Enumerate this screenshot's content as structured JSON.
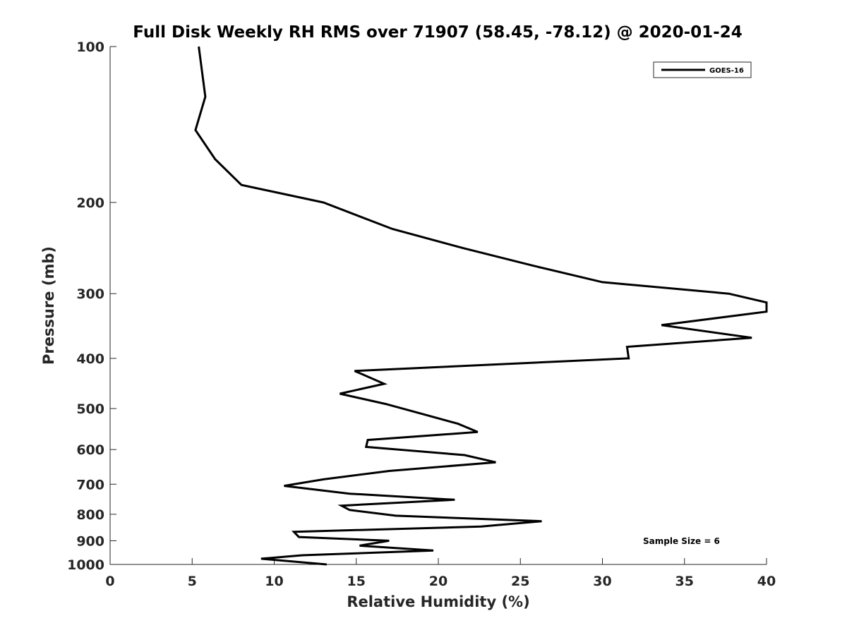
{
  "chart_data": {
    "type": "line",
    "title": "Full Disk Weekly RH RMS over 71907 (58.45, -78.12) @ 2020-01-24",
    "xlabel": "Relative Humidity (%)",
    "ylabel": "Pressure (mb)",
    "xlim": [
      0,
      40
    ],
    "ylim": [
      100,
      1000
    ],
    "y_scale": "log",
    "y_reversed": true,
    "grid": false,
    "legend_position": "top-right",
    "x_ticks": [
      "0",
      "5",
      "10",
      "15",
      "20",
      "25",
      "30",
      "35",
      "40"
    ],
    "y_ticks": [
      "100",
      "200",
      "300",
      "400",
      "500",
      "600",
      "700",
      "800",
      "900",
      "1000"
    ],
    "series": [
      {
        "name": "GOES-16",
        "color": "#000000",
        "points": [
          [
            5.4,
            100
          ],
          [
            5.8,
            125
          ],
          [
            5.2,
            145
          ],
          [
            6.4,
            165
          ],
          [
            8.0,
            185
          ],
          [
            13.0,
            200
          ],
          [
            17.2,
            225
          ],
          [
            21.5,
            245
          ],
          [
            25.8,
            265
          ],
          [
            30.0,
            285
          ],
          [
            37.7,
            300
          ],
          [
            40.0,
            312
          ],
          [
            40.0,
            325
          ],
          [
            33.6,
            345
          ],
          [
            39.1,
            365
          ],
          [
            31.5,
            380
          ],
          [
            31.6,
            400
          ],
          [
            14.9,
            423
          ],
          [
            16.7,
            448
          ],
          [
            14.0,
            468
          ],
          [
            16.8,
            490
          ],
          [
            19.0,
            512
          ],
          [
            21.2,
            535
          ],
          [
            22.4,
            555
          ],
          [
            15.7,
            575
          ],
          [
            15.6,
            593
          ],
          [
            21.6,
            615
          ],
          [
            23.5,
            635
          ],
          [
            17.0,
            660
          ],
          [
            13.0,
            685
          ],
          [
            10.6,
            705
          ],
          [
            14.6,
            730
          ],
          [
            21.0,
            750
          ],
          [
            14.1,
            770
          ],
          [
            14.6,
            785
          ],
          [
            17.4,
            805
          ],
          [
            26.3,
            825
          ],
          [
            22.6,
            845
          ],
          [
            11.2,
            865
          ],
          [
            11.5,
            885
          ],
          [
            17.0,
            900
          ],
          [
            15.2,
            920
          ],
          [
            19.7,
            940
          ],
          [
            11.7,
            960
          ],
          [
            9.2,
            975
          ],
          [
            13.2,
            1000
          ]
        ]
      }
    ],
    "annotations": [
      "Sample Size = 6"
    ]
  }
}
